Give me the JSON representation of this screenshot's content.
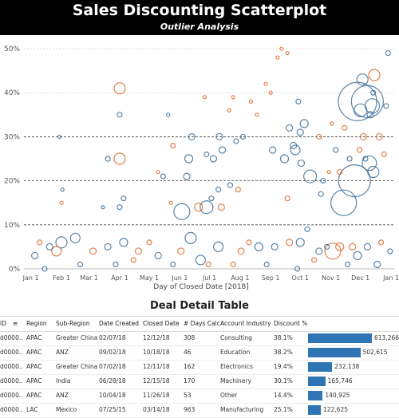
{
  "header": {
    "title": "Sales Discounting Scatterplot",
    "subtitle": "Outlier Analysis",
    "background": "#000000"
  },
  "chart_data": {
    "type": "scatter",
    "title": "Sales Discounting Scatterplot",
    "subtitle": "Outlier Analysis",
    "xlabel": "Day of Closed Date [2018]",
    "ylabel": "",
    "x_ticks": [
      "Jan 1",
      "Feb 1",
      "Mar 1",
      "Apr 1",
      "May 1",
      "Jun 1",
      "Jul 1",
      "Aug 1",
      "Sep 1",
      "Oct 1",
      "Nov 1",
      "Dec 1",
      "Jan 1"
    ],
    "y_ticks": [
      "0%",
      "10%",
      "20%",
      "30%",
      "40%",
      "50%"
    ],
    "ylim": [
      0,
      0.52
    ],
    "xlim": [
      "2017-12-25",
      "2019-01-05"
    ],
    "reference_lines": [
      0.1,
      0.2,
      0.3
    ],
    "grid": true,
    "colors": {
      "series_a": "#3d6e99",
      "series_b": "#e06a2a"
    },
    "points": [
      [
        "2018-11-28",
        0.38,
        "a",
        24
      ],
      [
        "2018-12-08",
        0.38,
        "a",
        20
      ],
      [
        "2018-12-03",
        0.43,
        "a",
        7
      ],
      [
        "2018-12-15",
        0.44,
        "b",
        7
      ],
      [
        "2018-12-01",
        0.36,
        "a",
        8
      ],
      [
        "2018-12-13",
        0.37,
        "a",
        9
      ],
      [
        "2018-12-10",
        0.24,
        "a",
        9
      ],
      [
        "2018-12-14",
        0.22,
        "a",
        7
      ],
      [
        "2018-11-25",
        0.2,
        "a",
        20
      ],
      [
        "2018-11-14",
        0.15,
        "a",
        16
      ],
      [
        "2018-12-11",
        0.35,
        "a",
        4
      ],
      [
        "2018-12-04",
        0.3,
        "b",
        4
      ],
      [
        "2018-11-30",
        0.27,
        "b",
        3
      ],
      [
        "2018-12-06",
        0.25,
        "a",
        3
      ],
      [
        "2018-12-14",
        0.4,
        "a",
        3
      ],
      [
        "2018-10-11",
        0.21,
        "a",
        8
      ],
      [
        "2018-09-29",
        0.38,
        "a",
        3
      ],
      [
        "2018-10-01",
        0.31,
        "a",
        4
      ],
      [
        "2018-10-05",
        0.33,
        "a",
        5
      ],
      [
        "2018-09-24",
        0.28,
        "a",
        4
      ],
      [
        "2018-09-03",
        0.27,
        "a",
        4
      ],
      [
        "2018-09-15",
        0.25,
        "a",
        5
      ],
      [
        "2018-09-20",
        0.32,
        "a",
        4
      ],
      [
        "2018-09-26",
        0.27,
        "a",
        6
      ],
      [
        "2018-10-02",
        0.24,
        "a",
        4
      ],
      [
        "2018-09-18",
        0.16,
        "b",
        3
      ],
      [
        "2018-09-08",
        0.48,
        "b",
        2
      ],
      [
        "2018-09-12",
        0.5,
        "b",
        2
      ],
      [
        "2018-09-18",
        0.49,
        "b",
        2
      ],
      [
        "2018-08-27",
        0.42,
        "b",
        2
      ],
      [
        "2018-08-12",
        0.38,
        "b",
        2
      ],
      [
        "2018-09-01",
        0.4,
        "b",
        2
      ],
      [
        "2018-08-18",
        0.35,
        "b",
        2
      ],
      [
        "2018-07-25",
        0.39,
        "b",
        2
      ],
      [
        "2018-08-04",
        0.3,
        "a",
        3
      ],
      [
        "2018-07-28",
        0.29,
        "a",
        3
      ],
      [
        "2018-07-14",
        0.27,
        "a",
        4
      ],
      [
        "2018-07-05",
        0.25,
        "a",
        4
      ],
      [
        "2018-06-28",
        0.26,
        "a",
        3
      ],
      [
        "2018-07-22",
        0.19,
        "a",
        3
      ],
      [
        "2018-07-10",
        0.18,
        "a",
        3
      ],
      [
        "2018-07-30",
        0.18,
        "b",
        3
      ],
      [
        "2018-07-13",
        0.14,
        "b",
        4
      ],
      [
        "2018-06-28",
        0.14,
        "a",
        8
      ],
      [
        "2018-07-03",
        0.16,
        "a",
        3
      ],
      [
        "2018-06-20",
        0.14,
        "b",
        5
      ],
      [
        "2018-06-03",
        0.13,
        "a",
        10
      ],
      [
        "2018-06-08",
        0.21,
        "a",
        4
      ],
      [
        "2018-06-10",
        0.25,
        "a",
        5
      ],
      [
        "2018-05-15",
        0.21,
        "a",
        3
      ],
      [
        "2018-05-25",
        0.28,
        "b",
        3
      ],
      [
        "2018-06-13",
        0.3,
        "a",
        4
      ],
      [
        "2018-07-11",
        0.3,
        "a",
        4
      ],
      [
        "2018-07-21",
        0.36,
        "b",
        2
      ],
      [
        "2018-06-26",
        0.39,
        "b",
        2
      ],
      [
        "2018-05-20",
        0.35,
        "a",
        2
      ],
      [
        "2018-04-01",
        0.41,
        "b",
        7
      ],
      [
        "2018-04-01",
        0.35,
        "a",
        3
      ],
      [
        "2018-04-01",
        0.25,
        "b",
        7
      ],
      [
        "2018-03-20",
        0.25,
        "a",
        3
      ],
      [
        "2018-04-01",
        0.14,
        "a",
        3
      ],
      [
        "2018-04-05",
        0.16,
        "a",
        3
      ],
      [
        "2018-03-15",
        0.14,
        "a",
        2
      ],
      [
        "2018-02-02",
        0.18,
        "a",
        2
      ],
      [
        "2018-02-01",
        0.15,
        "b",
        2
      ],
      [
        "2018-01-30",
        0.3,
        "a",
        2
      ],
      [
        "2018-05-10",
        0.22,
        "b",
        2
      ],
      [
        "2018-05-23",
        0.15,
        "b",
        2
      ],
      [
        "2018-10-20",
        0.3,
        "b",
        3
      ],
      [
        "2018-10-24",
        0.2,
        "a",
        3
      ],
      [
        "2018-11-06",
        0.27,
        "a",
        3
      ],
      [
        "2018-11-15",
        0.32,
        "b",
        3
      ],
      [
        "2018-11-20",
        0.25,
        "a",
        3
      ],
      [
        "2018-11-10",
        0.22,
        "b",
        3
      ],
      [
        "2018-10-30",
        0.22,
        "b",
        2
      ],
      [
        "2018-10-22",
        0.17,
        "a",
        3
      ],
      [
        "2018-11-02",
        0.33,
        "b",
        2
      ],
      [
        "2018-12-29",
        0.49,
        "a",
        3
      ],
      [
        "2018-12-27",
        0.37,
        "a",
        3
      ],
      [
        "2018-12-20",
        0.3,
        "b",
        4
      ],
      [
        "2018-12-25",
        0.26,
        "b",
        3
      ],
      [
        "2018-10-08",
        0.09,
        "a",
        3
      ],
      [
        "2018-11-03",
        0.04,
        "b",
        10
      ],
      [
        "2018-11-10",
        0.05,
        "b",
        5
      ],
      [
        "2018-11-23",
        0.05,
        "b",
        4
      ],
      [
        "2018-11-28",
        0.03,
        "a",
        5
      ],
      [
        "2018-10-20",
        0.04,
        "a",
        4
      ],
      [
        "2018-10-01",
        0.06,
        "a",
        5
      ],
      [
        "2018-09-20",
        0.06,
        "b",
        4
      ],
      [
        "2018-09-05",
        0.05,
        "a",
        4
      ],
      [
        "2018-08-20",
        0.05,
        "a",
        5
      ],
      [
        "2018-08-02",
        0.04,
        "b",
        4
      ],
      [
        "2018-07-10",
        0.05,
        "a",
        6
      ],
      [
        "2018-06-22",
        0.02,
        "a",
        6
      ],
      [
        "2018-06-12",
        0.07,
        "a",
        7
      ],
      [
        "2018-06-02",
        0.04,
        "b",
        4
      ],
      [
        "2018-05-10",
        0.03,
        "a",
        4
      ],
      [
        "2018-04-20",
        0.04,
        "b",
        4
      ],
      [
        "2018-04-05",
        0.06,
        "a",
        5
      ],
      [
        "2018-03-20",
        0.05,
        "a",
        4
      ],
      [
        "2018-03-05",
        0.04,
        "b",
        4
      ],
      [
        "2018-02-15",
        0.07,
        "a",
        6
      ],
      [
        "2018-02-01",
        0.06,
        "a",
        7
      ],
      [
        "2018-01-27",
        0.04,
        "b",
        6
      ],
      [
        "2018-01-20",
        0.05,
        "a",
        4
      ],
      [
        "2018-01-10",
        0.06,
        "b",
        3
      ],
      [
        "2018-01-05",
        0.03,
        "a",
        4
      ],
      [
        "2018-02-20",
        0.01,
        "a",
        3
      ],
      [
        "2018-04-15",
        0.02,
        "b",
        3
      ],
      [
        "2018-05-25",
        0.01,
        "a",
        3
      ],
      [
        "2018-07-25",
        0.01,
        "b",
        3
      ],
      [
        "2018-08-28",
        0.01,
        "a",
        3
      ],
      [
        "2018-10-15",
        0.02,
        "b",
        3
      ],
      [
        "2018-11-18",
        0.01,
        "a",
        3
      ],
      [
        "2018-12-18",
        0.01,
        "a",
        4
      ],
      [
        "2018-12-22",
        0.06,
        "b",
        3
      ],
      [
        "2018-12-08",
        0.05,
        "a",
        4
      ],
      [
        "2018-01-15",
        0.0,
        "a",
        3
      ],
      [
        "2018-03-28",
        0.01,
        "a",
        3
      ],
      [
        "2018-06-30",
        0.01,
        "b",
        3
      ],
      [
        "2018-09-28",
        0.0,
        "a",
        3
      ],
      [
        "2018-12-31",
        0.04,
        "a",
        3
      ],
      [
        "2018-05-01",
        0.06,
        "b",
        3
      ],
      [
        "2018-08-10",
        0.06,
        "b",
        3
      ],
      [
        "2018-10-28",
        0.05,
        "a",
        3
      ]
    ]
  },
  "table": {
    "title": "Deal Detail Table",
    "columns": [
      "ID",
      "Region",
      "Sub-Region",
      "Date Created",
      "Closed Date",
      "# Days Calc",
      "Account Industry",
      "Discount %",
      ""
    ],
    "rows": [
      {
        "id": "d0000..",
        "region": "APAC",
        "subregion": "Greater China",
        "created": "02/07/18",
        "closed": "12/12/18",
        "days": "308",
        "industry": "Consulting",
        "discount": "38.1%",
        "amount": 613266,
        "amount_label": "613,266"
      },
      {
        "id": "d0000..",
        "region": "APAC",
        "subregion": "ANZ",
        "created": "09/02/18",
        "closed": "10/18/18",
        "days": "46",
        "industry": "Education",
        "discount": "38.2%",
        "amount": 502615,
        "amount_label": "502,615"
      },
      {
        "id": "d0000..",
        "region": "APAC",
        "subregion": "Greater China",
        "created": "07/02/18",
        "closed": "12/11/18",
        "days": "162",
        "industry": "Electronics",
        "discount": "19.4%",
        "amount": 232138,
        "amount_label": "232,138"
      },
      {
        "id": "d0000..",
        "region": "APAC",
        "subregion": "India",
        "created": "06/28/18",
        "closed": "12/15/18",
        "days": "170",
        "industry": "Machinery",
        "discount": "30.1%",
        "amount": 165746,
        "amount_label": "165,746"
      },
      {
        "id": "d0000..",
        "region": "APAC",
        "subregion": "ANZ",
        "created": "10/04/18",
        "closed": "11/26/18",
        "days": "53",
        "industry": "Other",
        "discount": "14.4%",
        "amount": 140925,
        "amount_label": "140,925"
      },
      {
        "id": "d0000..",
        "region": "LAC",
        "subregion": "Mexico",
        "created": "07/25/15",
        "closed": "03/14/18",
        "days": "963",
        "industry": "Manufacturing",
        "discount": "25.1%",
        "amount": 122625,
        "amount_label": "122,625"
      }
    ],
    "bar_color": "#2f74b5"
  }
}
